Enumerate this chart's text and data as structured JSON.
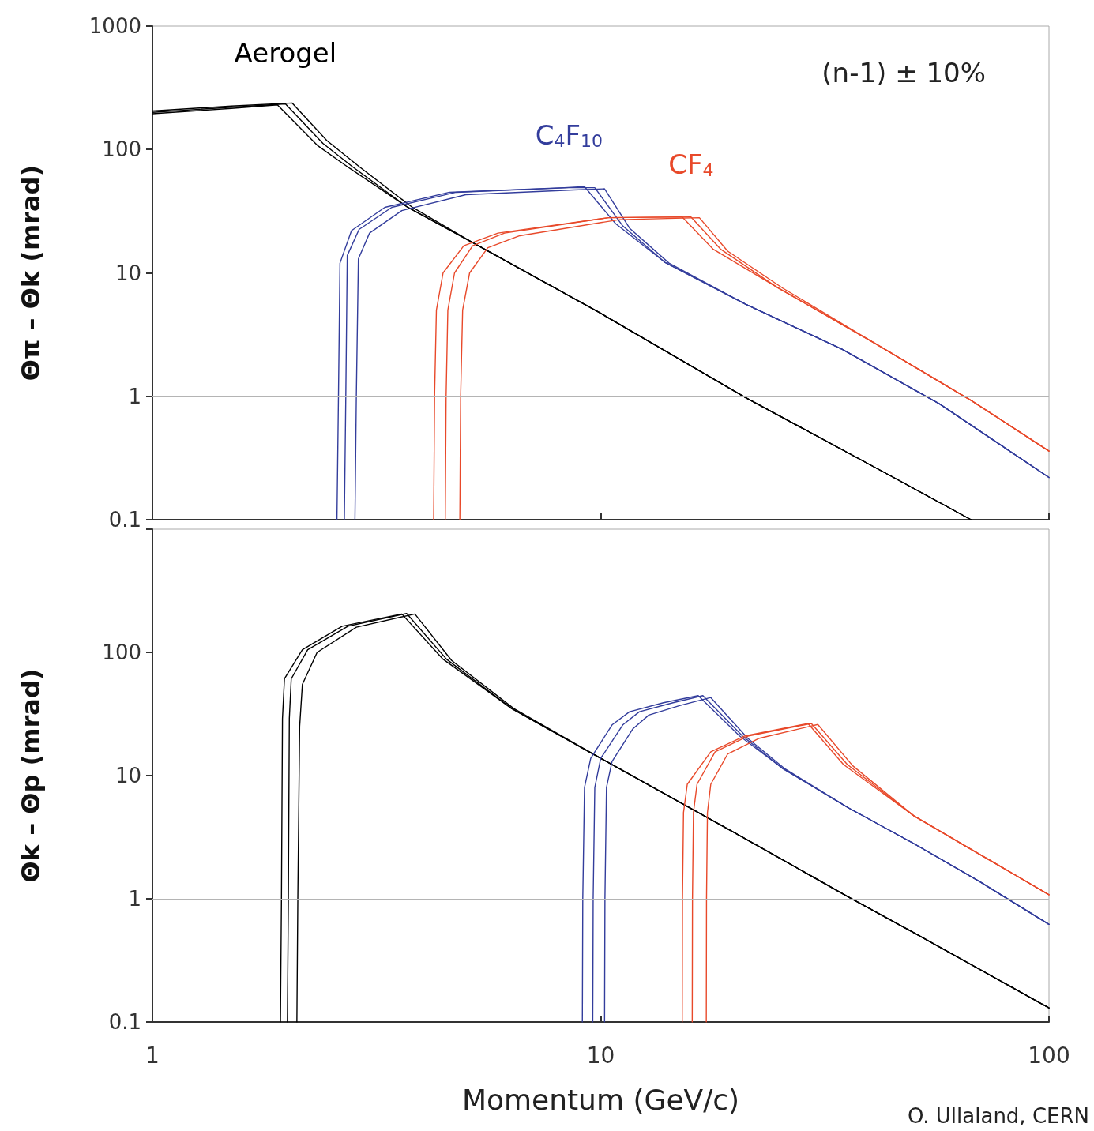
{
  "chart_data": [
    {
      "type": "line",
      "ylabel": "Θπ – Θk (mrad)",
      "log": "xy",
      "xlim": [
        1,
        100
      ],
      "xticks": [
        {
          "value": 1,
          "label": null
        },
        {
          "value": 10,
          "label": null
        },
        {
          "value": 100,
          "label": null
        }
      ],
      "ylim": [
        0.1,
        1000
      ],
      "yticks": [
        0.1,
        1,
        10,
        100,
        1000
      ],
      "tick_labels": "y",
      "legend": false,
      "marker": "none",
      "line_style": "solid",
      "ref_lines": [
        {
          "axis": "y",
          "value": 1,
          "color": "#b4b4b4"
        }
      ],
      "annotations": [
        "(n-1) ± 10%"
      ],
      "series": [
        {
          "name": "Aerogel",
          "color": "#000000",
          "x": [
            1,
            1.5,
            1.98,
            2.4,
            2.8,
            3.71,
            5.18,
            10,
            21,
            45,
            67
          ],
          "values": [
            200,
            220,
            234,
            112,
            72,
            34,
            17.6,
            4.7,
            0.98,
            0.22,
            0.1
          ]
        },
        {
          "color": "#000000",
          "x": [
            1,
            1.5,
            1.9,
            2.34,
            2.76,
            3.71,
            5.18,
            10,
            21,
            45,
            67
          ],
          "values": [
            195,
            215,
            230,
            107,
            70,
            34,
            17.6,
            4.7,
            0.98,
            0.22,
            0.1
          ]
        },
        {
          "color": "#000000",
          "x": [
            1,
            1.5,
            2.05,
            2.45,
            2.9,
            3.8,
            5.18,
            10,
            21,
            45,
            67
          ],
          "values": [
            205,
            225,
            238,
            118,
            72,
            34,
            17.6,
            4.7,
            0.98,
            0.22,
            0.1
          ]
        },
        {
          "name": "C$_{4}$F$_{10}$",
          "color": "#333d9c",
          "x": [
            2.68,
            2.7,
            2.72,
            2.89,
            3.42,
            4.76,
            8.5,
            9.7,
            11.2,
            13.9,
            21,
            34.6,
            56.9,
            100
          ],
          "values": [
            0.1,
            1,
            13.8,
            22.5,
            34,
            45,
            49,
            49,
            24,
            12.2,
            5.6,
            2.4,
            0.87,
            0.22
          ]
        },
        {
          "color": "#333d9c",
          "x": [
            2.58,
            2.6,
            2.62,
            2.78,
            3.3,
            4.6,
            8.3,
            9.2,
            10.8,
            13.9,
            21,
            34.6,
            56.9,
            100
          ],
          "values": [
            0.1,
            1,
            12,
            22,
            34,
            45,
            49,
            50,
            25,
            12.2,
            5.6,
            2.4,
            0.87,
            0.22
          ]
        },
        {
          "color": "#333d9c",
          "x": [
            2.83,
            2.85,
            2.88,
            3.05,
            3.6,
            5,
            8.7,
            10.2,
            11.6,
            14.2,
            21,
            34.6,
            56.9,
            100
          ],
          "values": [
            0.1,
            1,
            13,
            21,
            32,
            43,
            47,
            48,
            23,
            12,
            5.6,
            2.4,
            0.87,
            0.22
          ]
        },
        {
          "name": "CF$_{4}$",
          "color": "#e8492a",
          "x": [
            4.5,
            4.52,
            4.56,
            4.72,
            5.18,
            6.1,
            10.4,
            15.9,
            18.5,
            24.8,
            40.8,
            67.2,
            100
          ],
          "values": [
            0.1,
            1,
            5,
            10,
            16.6,
            21,
            28,
            28.4,
            15.6,
            7.6,
            2.7,
            0.92,
            0.36
          ]
        },
        {
          "color": "#e8492a",
          "x": [
            4.24,
            4.26,
            4.3,
            4.45,
            4.95,
            5.9,
            10.4,
            15.2,
            17.8,
            24.8,
            40.8,
            67.2,
            100
          ],
          "values": [
            0.1,
            1,
            5,
            10,
            16.6,
            21,
            28,
            28.4,
            15.6,
            7.6,
            2.7,
            0.92,
            0.36
          ]
        },
        {
          "color": "#e8492a",
          "x": [
            4.85,
            4.87,
            4.92,
            5.1,
            5.6,
            6.6,
            11,
            16.6,
            19.2,
            25.5,
            40.8,
            67.2,
            100
          ],
          "values": [
            0.1,
            1,
            5,
            10,
            16,
            20,
            27,
            28,
            15,
            7.5,
            2.7,
            0.92,
            0.36
          ]
        }
      ]
    },
    {
      "type": "line",
      "ylabel": "Θk – Θp (mrad)",
      "xlabel": "Momentum (GeV/c)",
      "log": "xy",
      "xlim": [
        1,
        100
      ],
      "xticks": [
        1,
        10,
        100
      ],
      "ylim": [
        0.1,
        1000
      ],
      "yticks": [
        0.1,
        1,
        10,
        100,
        {
          "value": 1000,
          "label": null
        }
      ],
      "legend": false,
      "marker": "none",
      "line_style": "solid",
      "ref_lines": [
        {
          "axis": "y",
          "value": 1,
          "color": "#b4b4b4"
        }
      ],
      "annotations": [
        "O. Ullaland, CERN"
      ],
      "series": [
        {
          "color": "#000000",
          "x": [
            2.0,
            2.01,
            2.02,
            2.04,
            2.22,
            2.73,
            3.69,
            4.53,
            6.33,
            10.3,
            20,
            35.6,
            50,
            100
          ],
          "values": [
            0.1,
            1,
            29,
            61,
            105,
            163,
            207,
            88,
            35,
            13,
            3.4,
            1.04,
            0.53,
            0.13
          ]
        },
        {
          "color": "#000000",
          "x": [
            1.93,
            1.94,
            1.95,
            1.97,
            2.16,
            2.65,
            3.6,
            4.45,
            6.33,
            10.3,
            20,
            35.6,
            50,
            100
          ],
          "values": [
            0.1,
            1,
            29,
            61,
            105,
            163,
            205,
            88,
            35,
            13,
            3.4,
            1.04,
            0.53,
            0.13
          ]
        },
        {
          "color": "#000000",
          "x": [
            2.1,
            2.11,
            2.13,
            2.16,
            2.33,
            2.85,
            3.85,
            4.65,
            6.4,
            10.3,
            20,
            35.6,
            50,
            100
          ],
          "values": [
            0.1,
            1,
            25,
            55,
            100,
            160,
            205,
            86,
            35,
            13,
            3.4,
            1.04,
            0.53,
            0.13
          ]
        },
        {
          "color": "#333d9c",
          "x": [
            9.6,
            9.62,
            9.7,
            10,
            11.2,
            12.2,
            14.5,
            16.9,
            20.7,
            25.4,
            35.6,
            50,
            70,
            100
          ],
          "values": [
            0.1,
            1,
            8,
            13.8,
            25.8,
            33,
            39,
            44.6,
            21,
            11.5,
            5.5,
            2.8,
            1.38,
            0.62
          ]
        },
        {
          "color": "#333d9c",
          "x": [
            9.1,
            9.12,
            9.2,
            9.5,
            10.6,
            11.6,
            13.8,
            16.5,
            20.4,
            25.4,
            35.6,
            50,
            70,
            100
          ],
          "values": [
            0.1,
            1,
            8,
            13.8,
            25.8,
            33,
            39,
            44.6,
            21,
            11.5,
            5.5,
            2.8,
            1.38,
            0.62
          ]
        },
        {
          "color": "#333d9c",
          "x": [
            10.2,
            10.22,
            10.3,
            10.6,
            11.8,
            12.8,
            15,
            17.6,
            21.3,
            25.8,
            35.6,
            50,
            70,
            100
          ],
          "values": [
            0.1,
            1,
            8,
            13,
            24,
            31,
            37,
            43,
            20,
            11.3,
            5.5,
            2.8,
            1.38,
            0.62
          ]
        },
        {
          "color": "#e8492a",
          "x": [
            16,
            16.02,
            16.1,
            16.4,
            18,
            21.4,
            29.5,
            35.5,
            50,
            70,
            100
          ],
          "values": [
            0.1,
            1,
            5,
            8.5,
            15.6,
            21,
            26.5,
            12.3,
            4.7,
            2.3,
            1.08
          ]
        },
        {
          "color": "#e8492a",
          "x": [
            15.2,
            15.22,
            15.3,
            15.6,
            17.6,
            21,
            29,
            34.8,
            50,
            70,
            100
          ],
          "values": [
            0.1,
            1,
            5,
            8.5,
            15.6,
            21,
            26.5,
            12.3,
            4.7,
            2.3,
            1.08
          ]
        },
        {
          "color": "#e8492a",
          "x": [
            17.2,
            17.22,
            17.3,
            17.6,
            19.2,
            22.5,
            30.5,
            36.5,
            50,
            70,
            100
          ],
          "values": [
            0.1,
            1,
            5,
            8.5,
            15,
            20,
            26,
            12,
            4.7,
            2.3,
            1.08
          ]
        }
      ]
    }
  ]
}
